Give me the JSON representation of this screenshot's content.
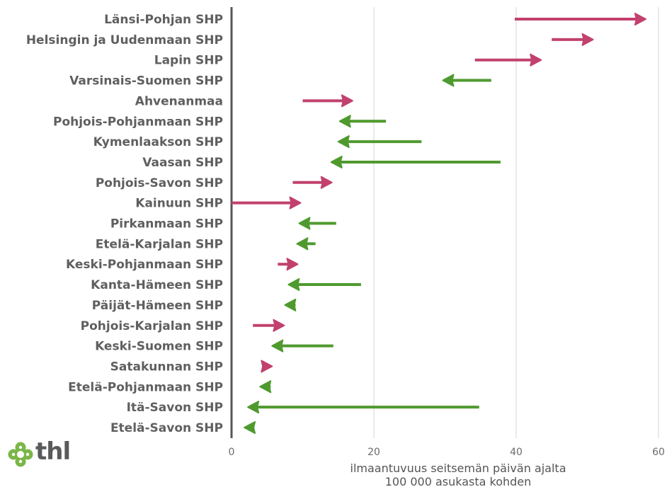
{
  "chart_data": {
    "type": "arrow",
    "categories": [
      "Länsi-Pohjan SHP",
      "Helsingin ja Uudenmaan SHP",
      "Lapin SHP",
      "Varsinais-Suomen SHP",
      "Ahvenanmaa",
      "Pohjois-Pohjanmaan SHP",
      "Kymenlaakson SHP",
      "Vaasan SHP",
      "Pohjois-Savon SHP",
      "Kainuun SHP",
      "Pirkanmaan SHP",
      "Etelä-Karjalan SHP",
      "Keski-Pohjanmaan SHP",
      "Kanta-Hämeen SHP",
      "Päijät-Hämeen SHP",
      "Pohjois-Karjalan SHP",
      "Keski-Suomen SHP",
      "Satakunnan SHP",
      "Etelä-Pohjanmaan SHP",
      "Itä-Savon SHP",
      "Etelä-Savon SHP"
    ],
    "start": [
      39.8,
      45.0,
      34.2,
      36.5,
      10.0,
      21.7,
      26.7,
      37.8,
      8.6,
      0.0,
      14.7,
      11.8,
      6.5,
      18.2,
      9.0,
      3.0,
      14.3,
      4.3,
      5.5,
      34.8,
      3.2
    ],
    "end": [
      58.2,
      50.8,
      43.5,
      29.7,
      17.0,
      15.2,
      15.0,
      14.0,
      14.1,
      9.7,
      9.5,
      9.2,
      9.3,
      8.0,
      7.5,
      7.4,
      5.7,
      5.7,
      4.0,
      2.3,
      1.8
    ],
    "colors": {
      "increase": "#c2416e",
      "decrease": "#4f9a2f"
    },
    "xlim": [
      0,
      60
    ],
    "xticks": [
      0,
      20,
      40,
      60
    ],
    "xlabel_lines": [
      "ilmaantuvuus seitsemän päivän ajalta",
      "100 000 asukasta kohden"
    ],
    "grid": true
  },
  "logo": {
    "text": "thl",
    "icon": "thl-clover-icon",
    "color": "#7ab648"
  }
}
